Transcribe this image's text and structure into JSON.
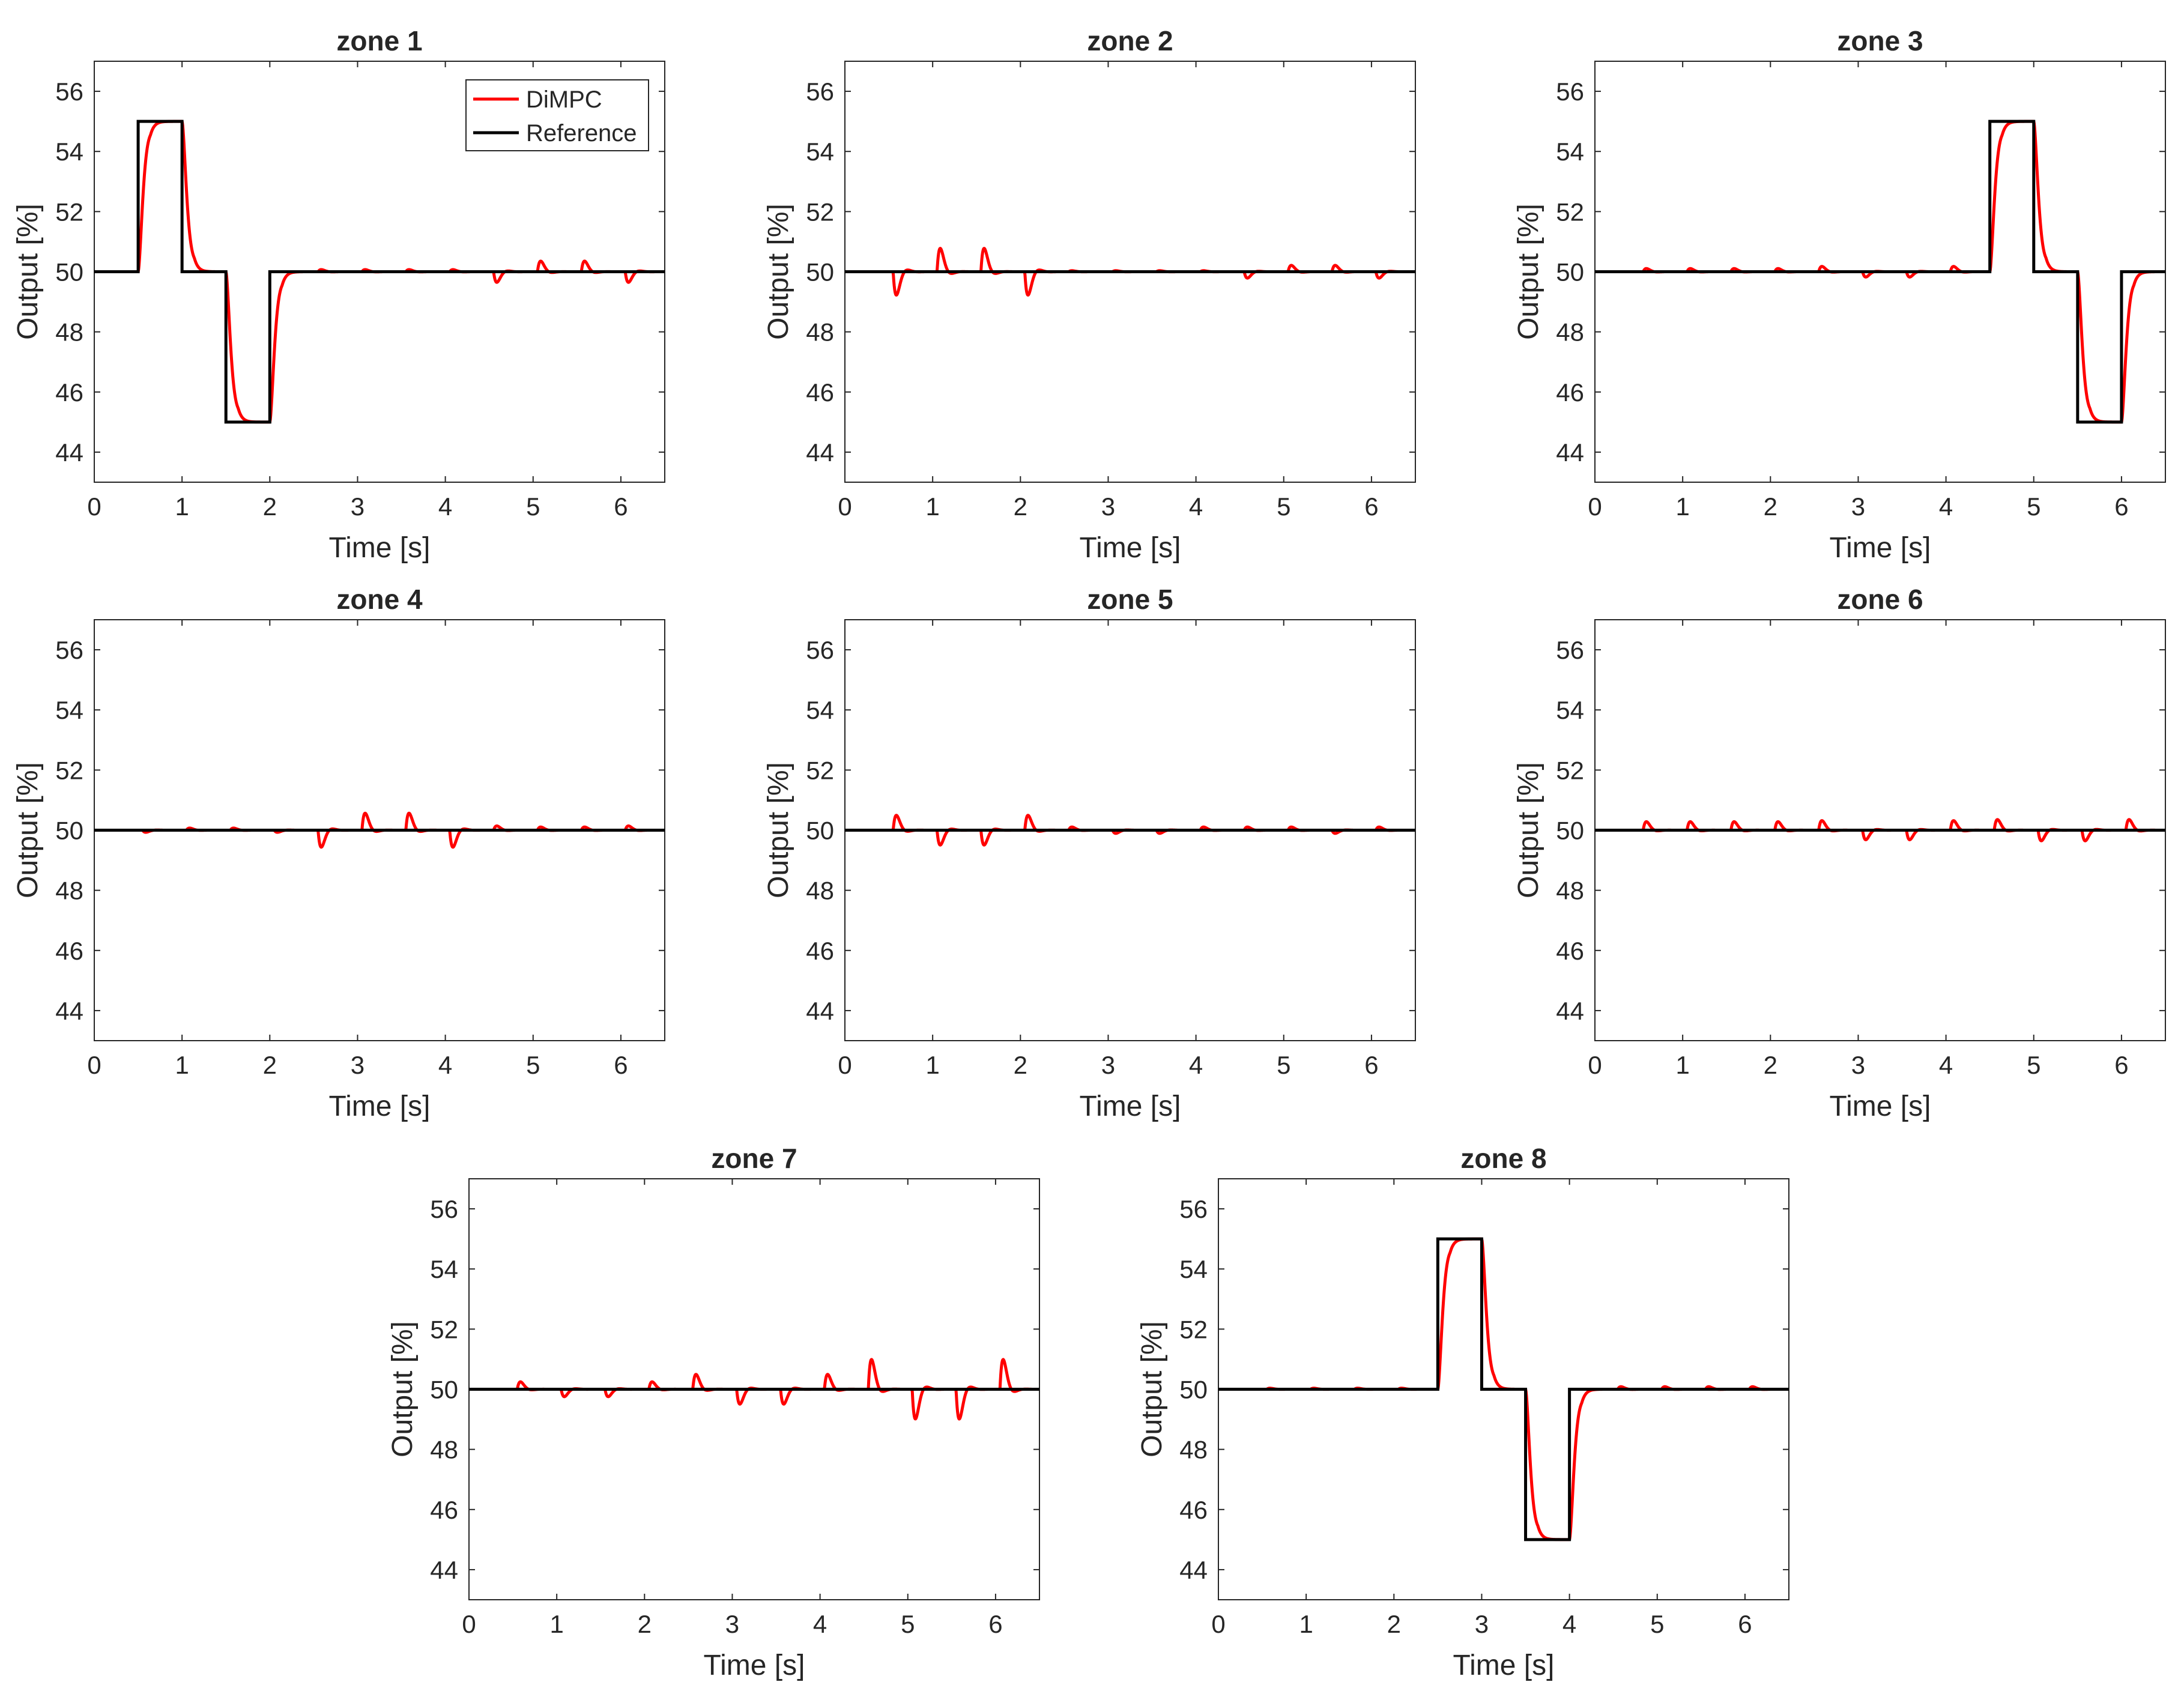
{
  "figure": {
    "background": "#ffffff",
    "axis_color": "#262626"
  },
  "series_colors": {
    "DiMPC": "#ff0000",
    "Reference": "#000000"
  },
  "legend": {
    "entries": [
      "DiMPC",
      "Reference"
    ],
    "placement": "top-right of zone 1"
  },
  "chart_data": [
    {
      "type": "line",
      "title": "zone 1",
      "xlabel": "Time [s]",
      "ylabel": "Output [%]",
      "xlim": [
        0,
        6.5
      ],
      "ylim": [
        43,
        57
      ],
      "xticks": [
        0,
        1,
        2,
        3,
        4,
        5,
        6
      ],
      "yticks": [
        44,
        46,
        48,
        50,
        52,
        54,
        56
      ],
      "reference": [
        [
          0,
          50
        ],
        [
          0.5,
          50
        ],
        [
          0.5,
          55
        ],
        [
          1.0,
          55
        ],
        [
          1.0,
          50
        ],
        [
          1.5,
          50
        ],
        [
          1.5,
          45
        ],
        [
          2.0,
          45
        ],
        [
          2.0,
          50
        ],
        [
          6.5,
          50
        ]
      ],
      "dimpc_baseline": 50,
      "dimpc_steps": [
        [
          0.5,
          5
        ],
        [
          1.0,
          -5
        ],
        [
          1.5,
          -5
        ],
        [
          2.0,
          5
        ]
      ],
      "dimpc_bumps": [
        [
          2.55,
          0.1
        ],
        [
          3.05,
          0.1
        ],
        [
          3.55,
          0.1
        ],
        [
          4.05,
          0.1
        ],
        [
          4.55,
          -0.5
        ],
        [
          5.05,
          0.5
        ],
        [
          5.55,
          0.5
        ],
        [
          6.05,
          -0.5
        ]
      ]
    },
    {
      "type": "line",
      "title": "zone 2",
      "xlabel": "Time [s]",
      "ylabel": "Output [%]",
      "xlim": [
        0,
        6.5
      ],
      "ylim": [
        43,
        57
      ],
      "xticks": [
        0,
        1,
        2,
        3,
        4,
        5,
        6
      ],
      "yticks": [
        44,
        46,
        48,
        50,
        52,
        54,
        56
      ],
      "reference": [
        [
          0,
          50
        ],
        [
          6.5,
          50
        ]
      ],
      "dimpc_baseline": 50,
      "dimpc_steps": [],
      "dimpc_bumps": [
        [
          0.55,
          -1.1
        ],
        [
          1.05,
          1.1
        ],
        [
          1.55,
          1.1
        ],
        [
          2.05,
          -1.1
        ],
        [
          2.55,
          0.05
        ],
        [
          3.05,
          0.05
        ],
        [
          3.55,
          0.05
        ],
        [
          4.05,
          0.05
        ],
        [
          4.55,
          -0.3
        ],
        [
          5.05,
          0.3
        ],
        [
          5.55,
          0.3
        ],
        [
          6.05,
          -0.3
        ]
      ]
    },
    {
      "type": "line",
      "title": "zone 3",
      "xlabel": "Time [s]",
      "ylabel": "Output [%]",
      "xlim": [
        0,
        6.5
      ],
      "ylim": [
        43,
        57
      ],
      "xticks": [
        0,
        1,
        2,
        3,
        4,
        5,
        6
      ],
      "yticks": [
        44,
        46,
        48,
        50,
        52,
        54,
        56
      ],
      "reference": [
        [
          0,
          50
        ],
        [
          4.5,
          50
        ],
        [
          4.5,
          55
        ],
        [
          5.0,
          55
        ],
        [
          5.0,
          50
        ],
        [
          5.5,
          50
        ],
        [
          5.5,
          45
        ],
        [
          6.0,
          45
        ],
        [
          6.0,
          50
        ],
        [
          6.5,
          50
        ]
      ],
      "dimpc_baseline": 50,
      "dimpc_steps": [
        [
          4.5,
          5
        ],
        [
          5.0,
          -5
        ],
        [
          5.5,
          -5
        ],
        [
          6.0,
          5
        ]
      ],
      "dimpc_bumps": [
        [
          0.55,
          0.15
        ],
        [
          1.05,
          0.15
        ],
        [
          1.55,
          0.15
        ],
        [
          2.05,
          0.15
        ],
        [
          2.55,
          0.25
        ],
        [
          3.05,
          -0.25
        ],
        [
          3.55,
          -0.25
        ],
        [
          4.05,
          0.25
        ]
      ]
    },
    {
      "type": "line",
      "title": "zone 4",
      "xlabel": "Time [s]",
      "ylabel": "Output [%]",
      "xlim": [
        0,
        6.5
      ],
      "ylim": [
        43,
        57
      ],
      "xticks": [
        0,
        1,
        2,
        3,
        4,
        5,
        6
      ],
      "yticks": [
        44,
        46,
        48,
        50,
        52,
        54,
        56
      ],
      "reference": [
        [
          0,
          50
        ],
        [
          6.5,
          50
        ]
      ],
      "dimpc_baseline": 50,
      "dimpc_steps": [],
      "dimpc_bumps": [
        [
          0.55,
          -0.1
        ],
        [
          1.05,
          0.1
        ],
        [
          1.55,
          0.1
        ],
        [
          2.05,
          -0.1
        ],
        [
          2.55,
          -0.8
        ],
        [
          3.05,
          0.8
        ],
        [
          3.55,
          0.8
        ],
        [
          4.05,
          -0.8
        ],
        [
          4.55,
          0.2
        ],
        [
          5.05,
          0.15
        ],
        [
          5.55,
          0.15
        ],
        [
          6.05,
          0.2
        ]
      ]
    },
    {
      "type": "line",
      "title": "zone 5",
      "xlabel": "Time [s]",
      "ylabel": "Output [%]",
      "xlim": [
        0,
        6.5
      ],
      "ylim": [
        43,
        57
      ],
      "xticks": [
        0,
        1,
        2,
        3,
        4,
        5,
        6
      ],
      "yticks": [
        44,
        46,
        48,
        50,
        52,
        54,
        56
      ],
      "reference": [
        [
          0,
          50
        ],
        [
          6.5,
          50
        ]
      ],
      "dimpc_baseline": 50,
      "dimpc_steps": [],
      "dimpc_bumps": [
        [
          0.55,
          0.7
        ],
        [
          1.05,
          -0.7
        ],
        [
          1.55,
          -0.7
        ],
        [
          2.05,
          0.7
        ],
        [
          2.55,
          0.15
        ],
        [
          3.05,
          -0.15
        ],
        [
          3.55,
          -0.15
        ],
        [
          4.05,
          0.15
        ],
        [
          4.55,
          0.15
        ],
        [
          5.05,
          0.15
        ],
        [
          5.55,
          -0.15
        ],
        [
          6.05,
          0.15
        ]
      ]
    },
    {
      "type": "line",
      "title": "zone 6",
      "xlabel": "Time [s]",
      "ylabel": "Output [%]",
      "xlim": [
        0,
        6.5
      ],
      "ylim": [
        43,
        57
      ],
      "xticks": [
        0,
        1,
        2,
        3,
        4,
        5,
        6
      ],
      "yticks": [
        44,
        46,
        48,
        50,
        52,
        54,
        56
      ],
      "reference": [
        [
          0,
          50
        ],
        [
          6.5,
          50
        ]
      ],
      "dimpc_baseline": 50,
      "dimpc_steps": [],
      "dimpc_bumps": [
        [
          0.55,
          0.4
        ],
        [
          1.05,
          0.4
        ],
        [
          1.55,
          0.4
        ],
        [
          2.05,
          0.4
        ],
        [
          2.55,
          0.45
        ],
        [
          3.05,
          -0.45
        ],
        [
          3.55,
          -0.45
        ],
        [
          4.05,
          0.45
        ],
        [
          4.55,
          0.5
        ],
        [
          5.05,
          -0.5
        ],
        [
          5.55,
          -0.5
        ],
        [
          6.05,
          0.5
        ]
      ]
    },
    {
      "type": "line",
      "title": "zone 7",
      "xlabel": "Time [s]",
      "ylabel": "Output [%]",
      "xlim": [
        0,
        6.5
      ],
      "ylim": [
        43,
        57
      ],
      "xticks": [
        0,
        1,
        2,
        3,
        4,
        5,
        6
      ],
      "yticks": [
        44,
        46,
        48,
        50,
        52,
        54,
        56
      ],
      "reference": [
        [
          0,
          50
        ],
        [
          6.5,
          50
        ]
      ],
      "dimpc_baseline": 50,
      "dimpc_steps": [],
      "dimpc_bumps": [
        [
          0.55,
          0.35
        ],
        [
          1.05,
          -0.35
        ],
        [
          1.55,
          -0.35
        ],
        [
          2.05,
          0.35
        ],
        [
          2.55,
          0.7
        ],
        [
          3.05,
          -0.7
        ],
        [
          3.55,
          -0.7
        ],
        [
          4.05,
          0.7
        ],
        [
          4.55,
          1.4
        ],
        [
          5.05,
          -1.4
        ],
        [
          5.55,
          -1.4
        ],
        [
          6.05,
          1.4
        ]
      ]
    },
    {
      "type": "line",
      "title": "zone 8",
      "xlabel": "Time [s]",
      "ylabel": "Output [%]",
      "xlim": [
        0,
        6.5
      ],
      "ylim": [
        43,
        57
      ],
      "xticks": [
        0,
        1,
        2,
        3,
        4,
        5,
        6
      ],
      "yticks": [
        44,
        46,
        48,
        50,
        52,
        54,
        56
      ],
      "reference": [
        [
          0,
          50
        ],
        [
          2.5,
          50
        ],
        [
          2.5,
          55
        ],
        [
          3.0,
          55
        ],
        [
          3.0,
          50
        ],
        [
          3.5,
          50
        ],
        [
          3.5,
          45
        ],
        [
          4.0,
          45
        ],
        [
          4.0,
          50
        ],
        [
          6.5,
          50
        ]
      ],
      "dimpc_baseline": 50,
      "dimpc_steps": [
        [
          2.5,
          5
        ],
        [
          3.0,
          -5
        ],
        [
          3.5,
          -5
        ],
        [
          4.0,
          5
        ]
      ],
      "dimpc_bumps": [
        [
          0.55,
          0.05
        ],
        [
          1.05,
          0.05
        ],
        [
          1.55,
          0.05
        ],
        [
          2.05,
          0.05
        ],
        [
          4.55,
          0.12
        ],
        [
          5.05,
          0.12
        ],
        [
          5.55,
          0.12
        ],
        [
          6.05,
          0.12
        ]
      ]
    }
  ]
}
